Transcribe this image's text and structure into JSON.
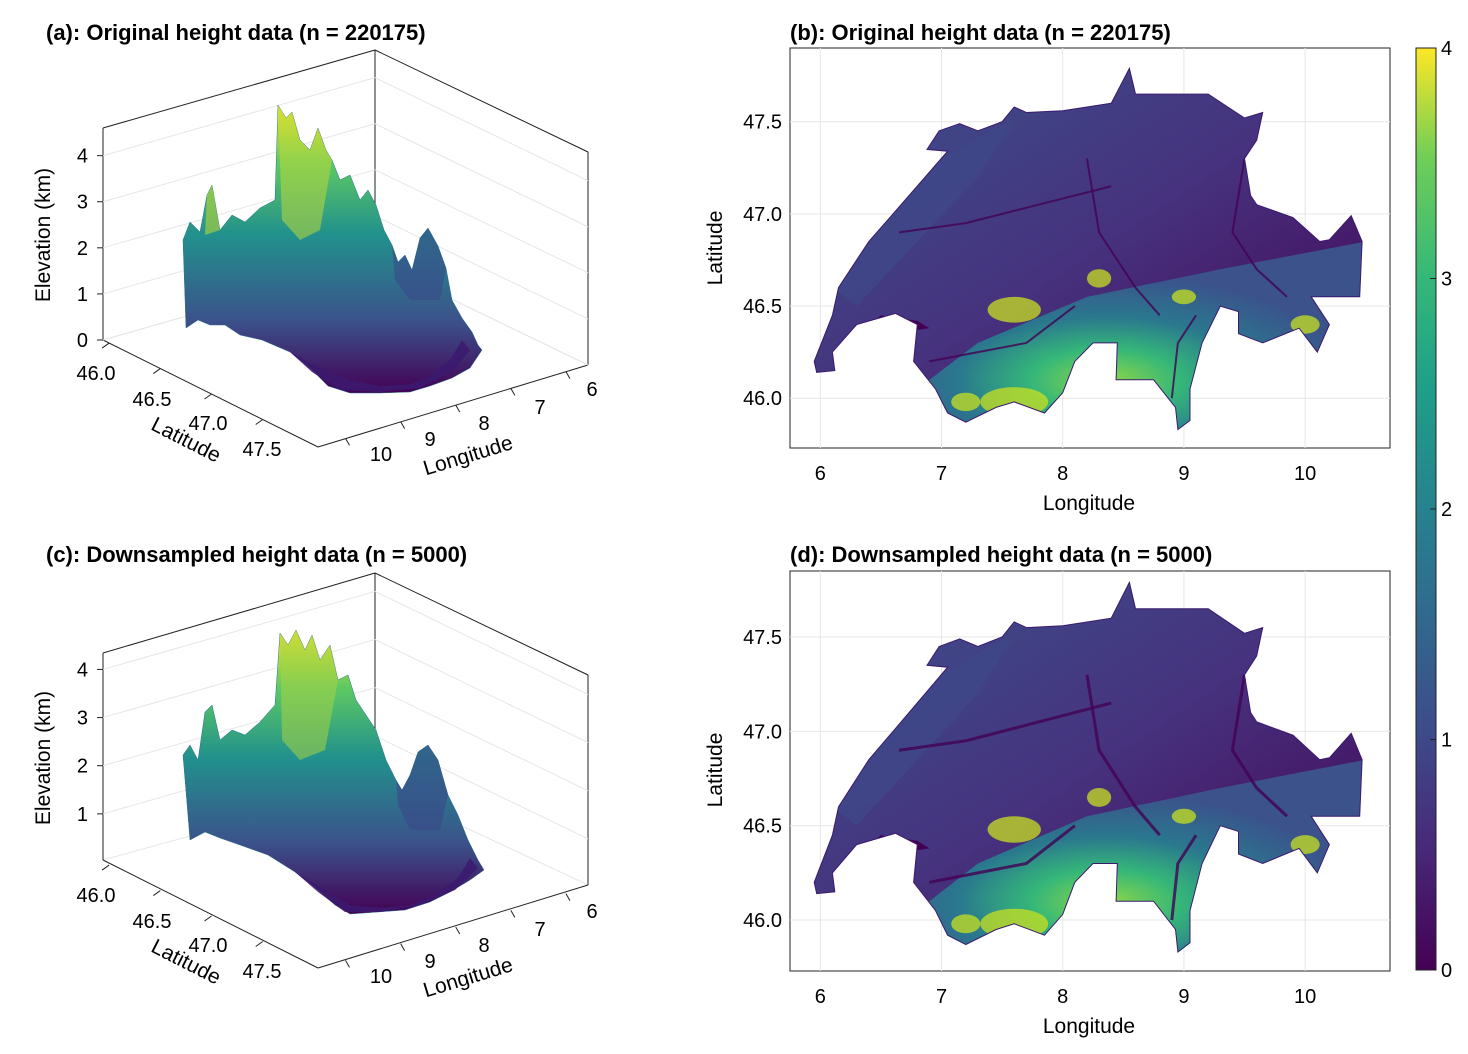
{
  "chart_data": [
    {
      "panel": "a",
      "type": "surface3d",
      "title": "(a): Original height data (n = 220175)",
      "xlabel": "Longitude",
      "ylabel": "Latitude",
      "zlabel": "Elevation (km)",
      "xticks": [
        "6",
        "7",
        "8",
        "9",
        "10"
      ],
      "yticks": [
        "46.0",
        "46.5",
        "47.0",
        "47.5"
      ],
      "zticks": [
        "0",
        "1",
        "2",
        "3",
        "4"
      ],
      "zlim": [
        0,
        4.6
      ],
      "peak_elevation_km": 4.5
    },
    {
      "panel": "b",
      "type": "heatmap",
      "title": "(b): Original height data (n = 220175)",
      "xlabel": "Longitude",
      "ylabel": "Latitude",
      "xlim": [
        5.75,
        10.7
      ],
      "ylim": [
        45.73,
        47.9
      ],
      "xticks": [
        "6",
        "7",
        "8",
        "9",
        "10"
      ],
      "yticks": [
        "46.0",
        "46.5",
        "47.0",
        "47.5"
      ]
    },
    {
      "panel": "c",
      "type": "surface3d",
      "title": "(c): Downsampled height data (n = 5000)",
      "xlabel": "Longitude",
      "ylabel": "Latitude",
      "zlabel": "Elevation (km)",
      "xticks": [
        "6",
        "7",
        "8",
        "9",
        "10"
      ],
      "yticks": [
        "46.0",
        "46.5",
        "47.0",
        "47.5"
      ],
      "zticks": [
        "1",
        "2",
        "3",
        "4"
      ],
      "zlim": [
        0,
        4.3
      ]
    },
    {
      "panel": "d",
      "type": "heatmap",
      "title": "(d): Downsampled height data (n = 5000)",
      "xlabel": "Longitude",
      "ylabel": "Latitude",
      "xlim": [
        5.75,
        10.7
      ],
      "ylim": [
        45.73,
        47.85
      ],
      "xticks": [
        "6",
        "7",
        "8",
        "9",
        "10"
      ],
      "yticks": [
        "46.0",
        "46.5",
        "47.0",
        "47.5"
      ]
    }
  ],
  "colorbar": {
    "colormap": "viridis",
    "range": [
      0,
      4
    ],
    "ticks": [
      "0",
      "1",
      "2",
      "3",
      "4"
    ]
  },
  "colors": {
    "viridis_low": "#440154",
    "viridis_mid": "#21918c",
    "viridis_high": "#fde725"
  },
  "country_outline_lonlat": [
    [
      5.97,
      46.14
    ],
    [
      6.12,
      46.15
    ],
    [
      6.1,
      46.25
    ],
    [
      6.3,
      46.4
    ],
    [
      6.62,
      46.46
    ],
    [
      6.8,
      46.4
    ],
    [
      6.77,
      46.2
    ],
    [
      6.95,
      46.05
    ],
    [
      7.05,
      45.92
    ],
    [
      7.2,
      45.87
    ],
    [
      7.45,
      45.95
    ],
    [
      7.6,
      45.98
    ],
    [
      7.85,
      45.92
    ],
    [
      8.0,
      46.03
    ],
    [
      8.1,
      46.2
    ],
    [
      8.25,
      46.3
    ],
    [
      8.45,
      46.3
    ],
    [
      8.44,
      46.1
    ],
    [
      8.75,
      46.1
    ],
    [
      8.93,
      45.95
    ],
    [
      8.95,
      45.83
    ],
    [
      9.05,
      45.88
    ],
    [
      9.05,
      46.05
    ],
    [
      9.15,
      46.3
    ],
    [
      9.3,
      46.5
    ],
    [
      9.45,
      46.47
    ],
    [
      9.45,
      46.35
    ],
    [
      9.65,
      46.3
    ],
    [
      9.95,
      46.38
    ],
    [
      10.1,
      46.25
    ],
    [
      10.2,
      46.4
    ],
    [
      10.05,
      46.55
    ],
    [
      10.3,
      46.55
    ],
    [
      10.45,
      46.55
    ],
    [
      10.47,
      46.85
    ],
    [
      10.38,
      46.99
    ],
    [
      10.2,
      46.86
    ],
    [
      10.12,
      46.85
    ],
    [
      9.9,
      46.98
    ],
    [
      9.6,
      47.05
    ],
    [
      9.55,
      47.1
    ],
    [
      9.5,
      47.3
    ],
    [
      9.6,
      47.4
    ],
    [
      9.65,
      47.55
    ],
    [
      9.5,
      47.52
    ],
    [
      9.2,
      47.65
    ],
    [
      8.9,
      47.65
    ],
    [
      8.6,
      47.65
    ],
    [
      8.55,
      47.79
    ],
    [
      8.4,
      47.6
    ],
    [
      8.0,
      47.56
    ],
    [
      7.7,
      47.55
    ],
    [
      7.6,
      47.58
    ],
    [
      7.5,
      47.5
    ],
    [
      7.3,
      47.45
    ],
    [
      7.15,
      47.49
    ],
    [
      6.98,
      47.45
    ],
    [
      6.88,
      47.35
    ],
    [
      7.05,
      47.34
    ],
    [
      6.6,
      47.0
    ],
    [
      6.4,
      46.85
    ],
    [
      6.15,
      46.6
    ],
    [
      6.1,
      46.45
    ],
    [
      5.95,
      46.2
    ]
  ]
}
